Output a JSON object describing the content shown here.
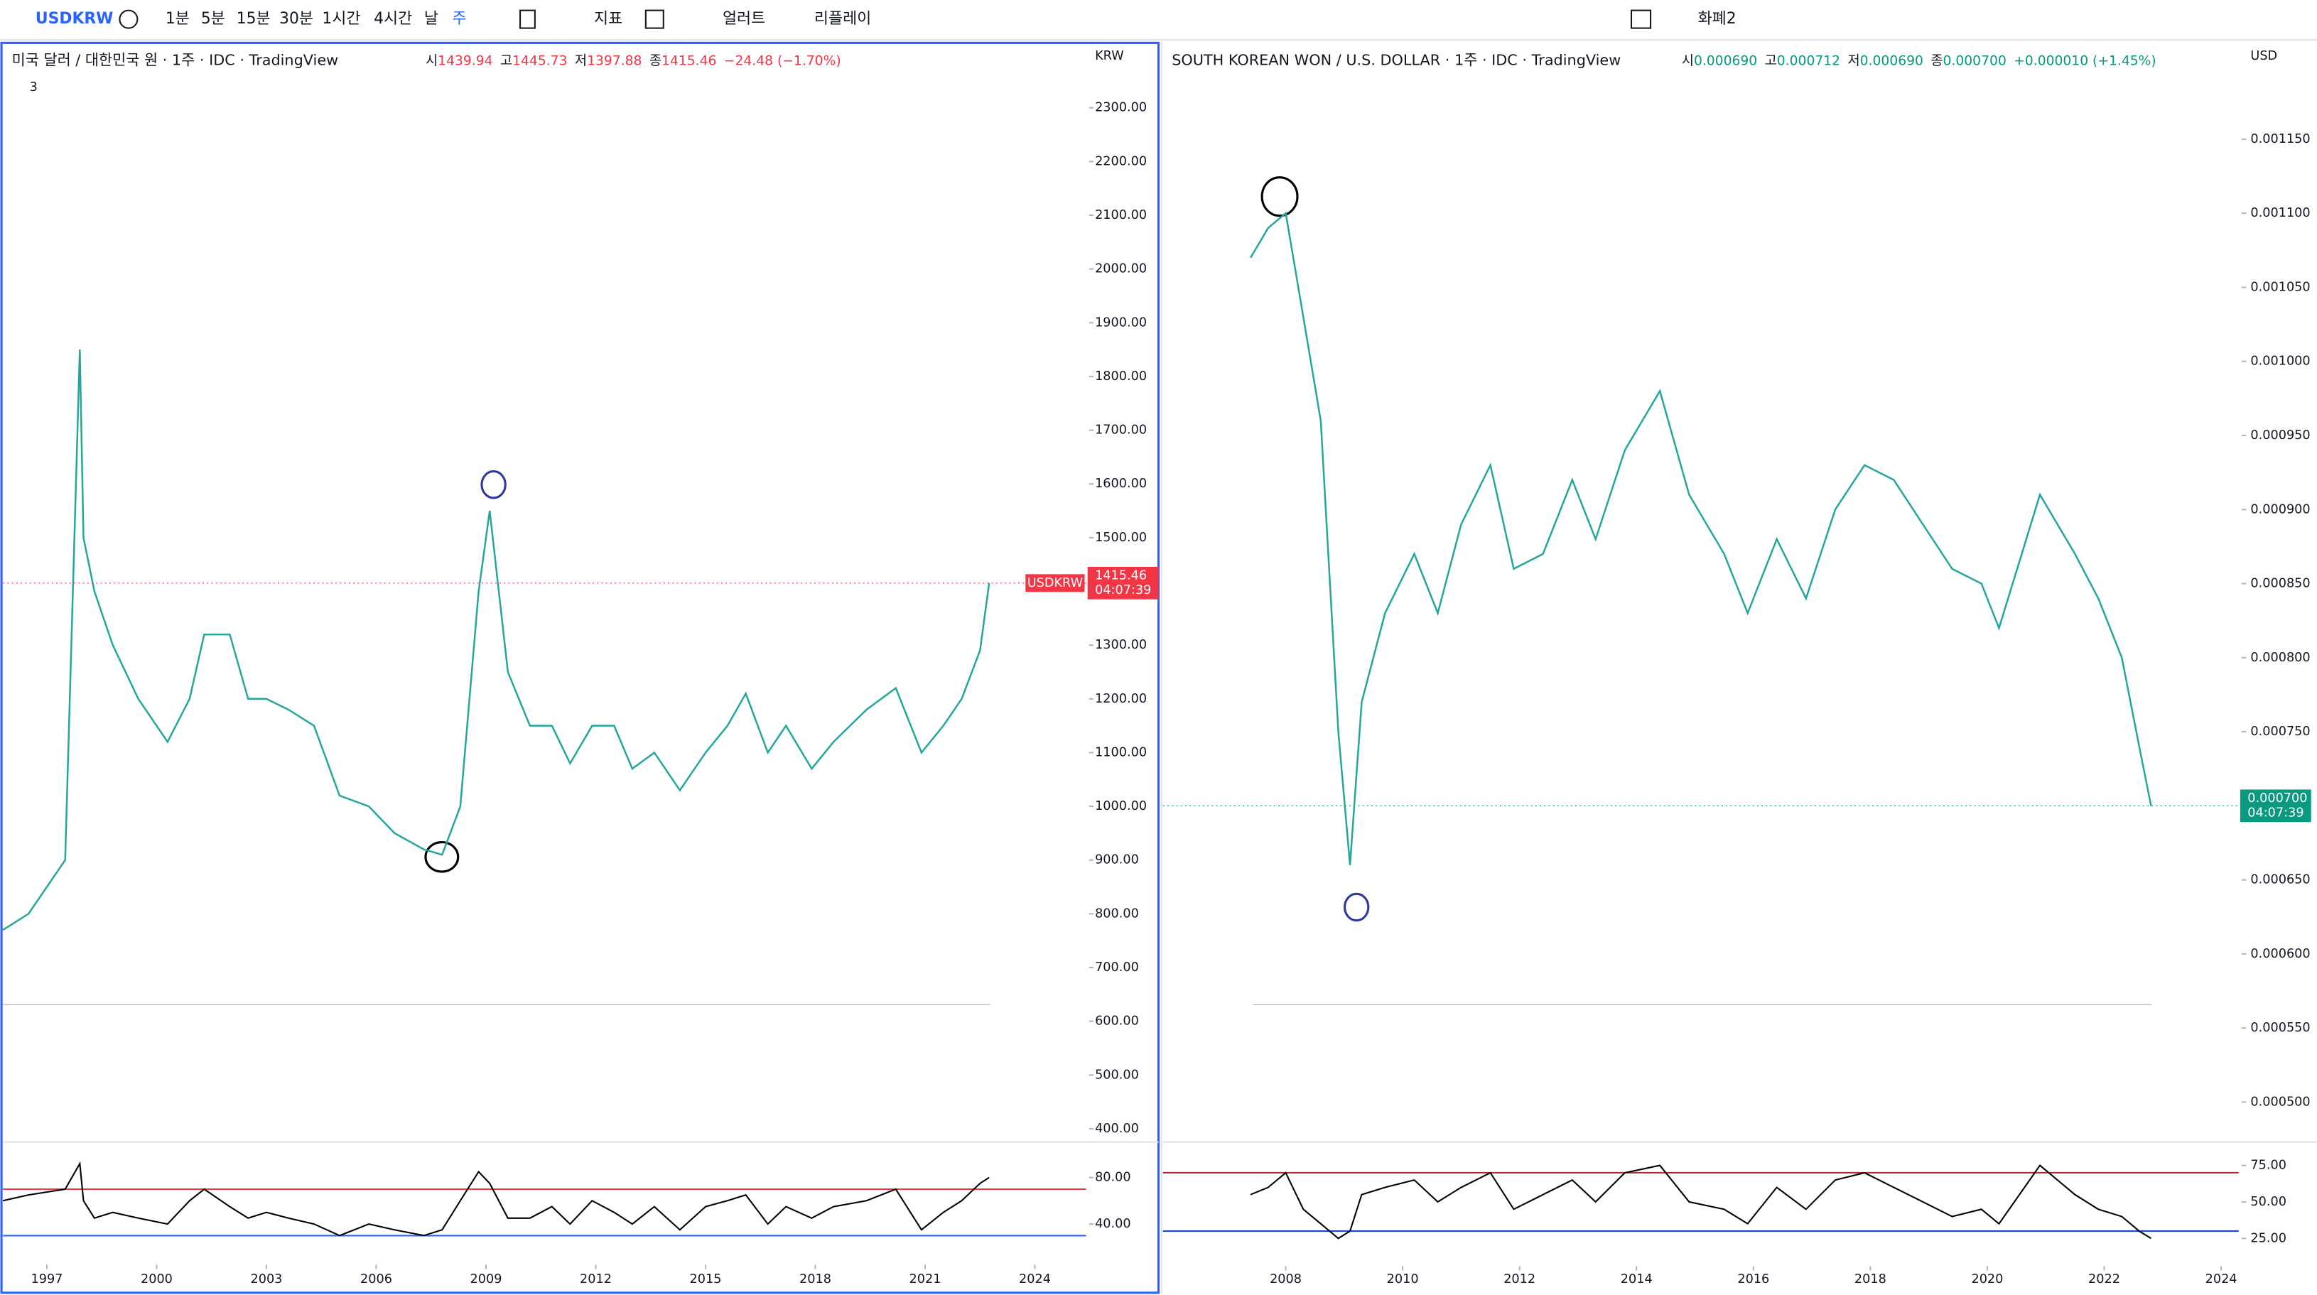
{
  "toolbar": {
    "symbol": "USDKRW",
    "intervals": [
      "1분",
      "5분",
      "15분",
      "30분",
      "1시간",
      "4시간",
      "날",
      "주"
    ],
    "indicators": "지표",
    "alert": "얼러트",
    "replay": "리플레이",
    "layout": "화폐2"
  },
  "chart_data": [
    {
      "type": "line",
      "title": "미국 달러 / 대한민국 원 · 1주 · IDC · TradingView",
      "ohlc": [
        {
          "key": "시",
          "text": "1439.94"
        },
        {
          "key": "고",
          "text": "1445.73"
        },
        {
          "key": "저",
          "text": "1397.88"
        },
        {
          "key": "종",
          "text": "1415.46"
        }
      ],
      "change": "−24.48 (−1.70%)",
      "change_color": "#f23645",
      "currency": "KRW",
      "indicator_count": "3",
      "last": {
        "value": 1415.46,
        "label": "1415.46",
        "tag": "USDKRW",
        "time": "04:07:39",
        "color": "#f23645"
      },
      "xlim": [
        1995.8,
        2025.4
      ],
      "xticks": [
        1997,
        2000,
        2003,
        2006,
        2009,
        2012,
        2015,
        2018,
        2021,
        2024
      ],
      "ylim": [
        378,
        2418
      ],
      "yticks": [
        {
          "value": 400,
          "label": "400.00"
        },
        {
          "value": 500,
          "label": "500.00"
        },
        {
          "value": 600,
          "label": "600.00"
        },
        {
          "value": 700,
          "label": "700.00"
        },
        {
          "value": 800,
          "label": "800.00"
        },
        {
          "value": 900,
          "label": "900.00"
        },
        {
          "value": 1000,
          "label": "1000.00"
        },
        {
          "value": 1100,
          "label": "1100.00"
        },
        {
          "value": 1200,
          "label": "1200.00"
        },
        {
          "value": 1300,
          "label": "1300.00"
        },
        {
          "value": 1400,
          "label": "1400.00"
        },
        {
          "value": 1500,
          "label": "1500.00"
        },
        {
          "value": 1600,
          "label": "1600.00"
        },
        {
          "value": 1700,
          "label": "1700.00"
        },
        {
          "value": 1800,
          "label": "1800.00"
        },
        {
          "value": 1900,
          "label": "1900.00"
        },
        {
          "value": 2000,
          "label": "2000.00"
        },
        {
          "value": 2100,
          "label": "2100.00"
        },
        {
          "value": 2200,
          "label": "2200.00"
        },
        {
          "value": 2300,
          "label": "2300.00"
        }
      ],
      "x": [
        1995.8,
        1996.5,
        1997.5,
        1997.9,
        1998.0,
        1998.3,
        1998.8,
        1999.5,
        2000.3,
        2000.9,
        2001.3,
        2002.0,
        2002.5,
        2003.0,
        2003.6,
        2004.3,
        2005.0,
        2005.8,
        2006.5,
        2007.3,
        2007.8,
        2008.3,
        2008.8,
        2009.1,
        2009.6,
        2010.2,
        2010.8,
        2011.3,
        2011.9,
        2012.5,
        2013.0,
        2013.6,
        2014.3,
        2015.0,
        2015.6,
        2016.1,
        2016.7,
        2017.2,
        2017.9,
        2018.5,
        2019.4,
        2020.2,
        2020.9,
        2021.5,
        2022.0,
        2022.5,
        2022.75
      ],
      "values": [
        770,
        800,
        900,
        1850,
        1500,
        1400,
        1300,
        1200,
        1120,
        1200,
        1320,
        1320,
        1200,
        1200,
        1180,
        1150,
        1020,
        1000,
        950,
        920,
        910,
        1000,
        1400,
        1550,
        1250,
        1150,
        1150,
        1080,
        1150,
        1150,
        1070,
        1100,
        1030,
        1100,
        1150,
        1210,
        1100,
        1150,
        1070,
        1120,
        1180,
        1220,
        1100,
        1150,
        1200,
        1290,
        1415.46
      ],
      "color": "#26a69a",
      "rsi": {
        "ylim": [
          5,
          108
        ],
        "yticks": [
          {
            "value": 40,
            "label": "40.00"
          },
          {
            "value": 80,
            "label": "80.00"
          }
        ],
        "levels": [
          {
            "value": 70,
            "color": "#f23645"
          },
          {
            "value": 30,
            "color": "#2962ff"
          }
        ],
        "values": [
          60,
          65,
          70,
          92,
          60,
          45,
          50,
          45,
          40,
          60,
          70,
          55,
          45,
          50,
          45,
          40,
          30,
          40,
          35,
          30,
          35,
          60,
          85,
          75,
          45,
          45,
          55,
          40,
          60,
          50,
          40,
          55,
          35,
          55,
          60,
          65,
          40,
          55,
          45,
          55,
          60,
          70,
          35,
          50,
          60,
          75,
          80
        ]
      }
    },
    {
      "type": "line",
      "title": "SOUTH KOREAN WON / U.S. DOLLAR · 1주 · IDC · TradingView",
      "ohlc": [
        {
          "key": "시",
          "text": "0.000690"
        },
        {
          "key": "고",
          "text": "0.000712"
        },
        {
          "key": "저",
          "text": "0.000690"
        },
        {
          "key": "종",
          "text": "0.000700"
        }
      ],
      "change": "+0.000010 (+1.45%)",
      "change_color": "#089981",
      "currency": "USD",
      "last": {
        "value": 0.0007,
        "label": "0.000700",
        "time": "04:07:39",
        "color": "#089981"
      },
      "xlim": [
        2005.9,
        2024.3
      ],
      "xticks": [
        2008,
        2010,
        2012,
        2014,
        2016,
        2018,
        2020,
        2022,
        2024
      ],
      "ylim": [
        0.000474,
        0.001214
      ],
      "yticks": [
        {
          "value": 0.0005,
          "label": "0.000500"
        },
        {
          "value": 0.00055,
          "label": "0.000550"
        },
        {
          "value": 0.0006,
          "label": "0.000600"
        },
        {
          "value": 0.00065,
          "label": "0.000650"
        },
        {
          "value": 0.0007,
          "label": "0.000700"
        },
        {
          "value": 0.00075,
          "label": "0.000750"
        },
        {
          "value": 0.0008,
          "label": "0.000800"
        },
        {
          "value": 0.00085,
          "label": "0.000850"
        },
        {
          "value": 0.0009,
          "label": "0.000900"
        },
        {
          "value": 0.00095,
          "label": "0.000950"
        },
        {
          "value": 0.001,
          "label": "0.001000"
        },
        {
          "value": 0.00105,
          "label": "0.001050"
        },
        {
          "value": 0.0011,
          "label": "0.001100"
        },
        {
          "value": 0.00115,
          "label": "0.001150"
        }
      ],
      "x": [
        2007.4,
        2007.7,
        2008.0,
        2008.3,
        2008.6,
        2008.9,
        2009.1,
        2009.3,
        2009.7,
        2010.2,
        2010.6,
        2011.0,
        2011.5,
        2011.9,
        2012.4,
        2012.9,
        2013.3,
        2013.8,
        2014.4,
        2014.9,
        2015.5,
        2015.9,
        2016.4,
        2016.9,
        2017.4,
        2017.9,
        2018.4,
        2018.9,
        2019.4,
        2019.9,
        2020.2,
        2020.9,
        2021.5,
        2021.9,
        2022.3,
        2022.6,
        2022.8
      ],
      "values": [
        0.00107,
        0.00109,
        0.0011,
        0.00103,
        0.00096,
        0.00075,
        0.00066,
        0.00077,
        0.00083,
        0.00087,
        0.00083,
        0.00089,
        0.00093,
        0.00086,
        0.00087,
        0.00092,
        0.00088,
        0.00094,
        0.00098,
        0.00091,
        0.00087,
        0.00083,
        0.00088,
        0.00084,
        0.0009,
        0.00093,
        0.00092,
        0.00089,
        0.00086,
        0.00085,
        0.00082,
        0.00091,
        0.00087,
        0.00084,
        0.0008,
        0.00074,
        0.0007
      ],
      "color": "#26a69a",
      "rsi": {
        "ylim": [
          6,
          89
        ],
        "yticks": [
          {
            "value": 25,
            "label": "25.00"
          },
          {
            "value": 50,
            "label": "50.00"
          },
          {
            "value": 75,
            "label": "75.00"
          }
        ],
        "levels": [
          {
            "value": 70,
            "color": "#b22833"
          },
          {
            "value": 30,
            "color": "#1848cc"
          }
        ],
        "values": [
          55,
          60,
          70,
          45,
          35,
          25,
          30,
          55,
          60,
          65,
          50,
          60,
          70,
          45,
          55,
          65,
          50,
          70,
          75,
          50,
          45,
          35,
          60,
          45,
          65,
          70,
          60,
          50,
          40,
          45,
          35,
          75,
          55,
          45,
          40,
          30,
          25
        ]
      }
    }
  ]
}
